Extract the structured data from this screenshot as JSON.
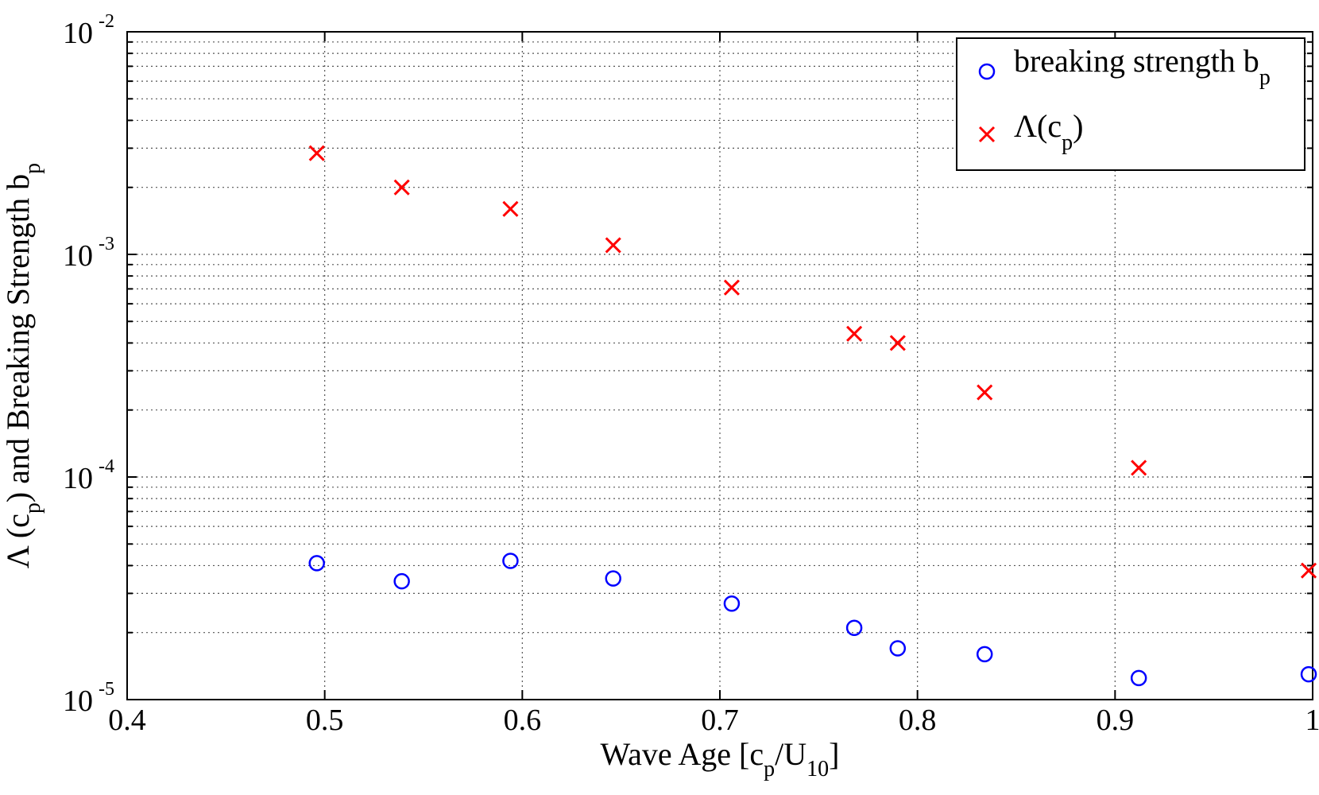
{
  "chart_data": {
    "type": "scatter",
    "x_scale": "linear",
    "y_scale": "log",
    "xlim": [
      0.4,
      1.0
    ],
    "ylim": [
      1e-05,
      0.01
    ],
    "x_ticks": [
      "0.4",
      "0.5",
      "0.6",
      "0.7",
      "0.8",
      "0.9",
      "1"
    ],
    "x_tick_values": [
      0.4,
      0.5,
      0.6,
      0.7,
      0.8,
      0.9,
      1.0
    ],
    "y_ticks": [
      {
        "value": 1e-05,
        "base": "10",
        "exp": "-5"
      },
      {
        "value": 0.0001,
        "base": "10",
        "exp": "-4"
      },
      {
        "value": 0.001,
        "base": "10",
        "exp": "-3"
      },
      {
        "value": 0.01,
        "base": "10",
        "exp": "-2"
      }
    ],
    "grid": true,
    "legend_position": "top-right",
    "xlabel": {
      "main": "Wave Age [c",
      "sub1": "p",
      "mid": "/U",
      "sub2": "10",
      "end": "]"
    },
    "ylabel": {
      "main": "Λ (c",
      "sub1": "p",
      "mid": ")  and Breaking Strength b",
      "sub2": "p"
    },
    "series": [
      {
        "name": "breaking strength b",
        "name_sub": "p",
        "marker": "circle",
        "color": "#0000ff",
        "x": [
          0.496,
          0.539,
          0.594,
          0.646,
          0.706,
          0.768,
          0.79,
          0.834,
          0.912,
          0.998
        ],
        "y": [
          4.1e-05,
          3.4e-05,
          4.2e-05,
          3.5e-05,
          2.7e-05,
          2.1e-05,
          1.7e-05,
          1.6e-05,
          1.25e-05,
          1.3e-05
        ]
      },
      {
        "name": "Λ(c",
        "name_sub": "p",
        "name_end": ")",
        "marker": "x",
        "color": "#ff0000",
        "x": [
          0.496,
          0.539,
          0.594,
          0.646,
          0.706,
          0.768,
          0.79,
          0.834,
          0.912,
          0.998
        ],
        "y": [
          0.00285,
          0.002,
          0.0016,
          0.0011,
          0.00071,
          0.00044,
          0.0004,
          0.00024,
          0.00011,
          3.8e-05
        ]
      }
    ]
  }
}
